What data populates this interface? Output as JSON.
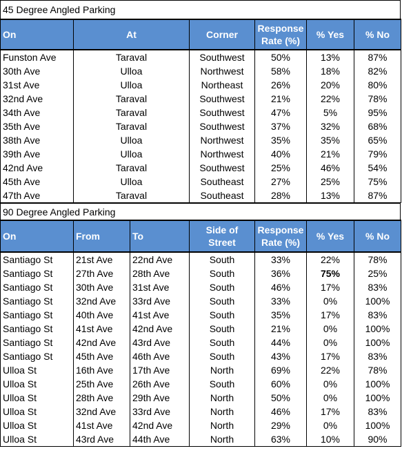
{
  "table1": {
    "title": "45 Degree Angled Parking",
    "headers": [
      "On",
      "At",
      "Corner",
      "Response Rate (%)",
      "% Yes",
      "% No"
    ],
    "rows": [
      [
        "Funston Ave",
        "Taraval",
        "Southwest",
        "50%",
        "13%",
        "87%"
      ],
      [
        "30th Ave",
        "Ulloa",
        "Northwest",
        "58%",
        "18%",
        "82%"
      ],
      [
        "31st Ave",
        "Ulloa",
        "Northeast",
        "26%",
        "20%",
        "80%"
      ],
      [
        "32nd Ave",
        "Taraval",
        "Southwest",
        "21%",
        "22%",
        "78%"
      ],
      [
        "34th Ave",
        "Taraval",
        "Southwest",
        "47%",
        "5%",
        "95%"
      ],
      [
        "35th Ave",
        "Taraval",
        "Southwest",
        "37%",
        "32%",
        "68%"
      ],
      [
        "38th Ave",
        "Ulloa",
        "Northwest",
        "35%",
        "35%",
        "65%"
      ],
      [
        "39th Ave",
        "Ulloa",
        "Northwest",
        "40%",
        "21%",
        "79%"
      ],
      [
        "42nd Ave",
        "Taraval",
        "Southwest",
        "25%",
        "46%",
        "54%"
      ],
      [
        "45th Ave",
        "Ulloa",
        "Southeast",
        "27%",
        "25%",
        "75%"
      ],
      [
        "47th Ave",
        "Taraval",
        "Southeast",
        "28%",
        "13%",
        "87%"
      ]
    ]
  },
  "table2": {
    "title": "90 Degree Angled Parking",
    "headers": [
      "On",
      "From",
      "To",
      "Side of Street",
      "Response Rate (%)",
      "% Yes",
      "% No"
    ],
    "rows": [
      [
        "Santiago St",
        "21st Ave",
        "22nd Ave",
        "South",
        "33%",
        "22%",
        "78%"
      ],
      [
        "Santiago St",
        "27th Ave",
        "28th Ave",
        "South",
        "36%",
        "75%",
        "25%"
      ],
      [
        "Santiago St",
        "30th Ave",
        "31st Ave",
        "South",
        "46%",
        "17%",
        "83%"
      ],
      [
        "Santiago St",
        "32nd Ave",
        "33rd Ave",
        "South",
        "33%",
        "0%",
        "100%"
      ],
      [
        "Santiago St",
        "40th Ave",
        "41st Ave",
        "South",
        "35%",
        "17%",
        "83%"
      ],
      [
        "Santiago St",
        "41st Ave",
        "42nd Ave",
        "South",
        "21%",
        "0%",
        "100%"
      ],
      [
        "Santiago St",
        "42nd Ave",
        "43rd Ave",
        "South",
        "44%",
        "0%",
        "100%"
      ],
      [
        "Santiago St",
        "45th Ave",
        "46th Ave",
        "South",
        "43%",
        "17%",
        "83%"
      ],
      [
        "Ulloa St",
        "16th Ave",
        "17th Ave",
        "North",
        "69%",
        "22%",
        "78%"
      ],
      [
        "Ulloa St",
        "25th Ave",
        "26th Ave",
        "South",
        "60%",
        "0%",
        "100%"
      ],
      [
        "Ulloa St",
        "28th Ave",
        "29th Ave",
        "North",
        "50%",
        "0%",
        "100%"
      ],
      [
        "Ulloa St",
        "32nd Ave",
        "33rd Ave",
        "North",
        "46%",
        "17%",
        "83%"
      ],
      [
        "Ulloa St",
        "41st Ave",
        "42nd Ave",
        "North",
        "29%",
        "0%",
        "100%"
      ],
      [
        "Ulloa St",
        "43rd Ave",
        "44th Ave",
        "North",
        "63%",
        "10%",
        "90%"
      ]
    ],
    "bold_cells": [
      [
        1,
        5
      ]
    ]
  },
  "colors": {
    "header_bg": "#5a8fd0",
    "header_text": "#ffffff"
  }
}
